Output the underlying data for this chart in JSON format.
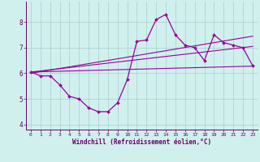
{
  "title": "",
  "xlabel": "Windchill (Refroidissement éolien,°C)",
  "ylabel": "",
  "bg_color": "#d0f0ee",
  "line_color": "#990099",
  "grid_color": "#aacccc",
  "axis_color": "#660066",
  "spine_color": "#660066",
  "xlim": [
    -0.5,
    23.5
  ],
  "ylim": [
    3.8,
    8.8
  ],
  "xticks": [
    0,
    1,
    2,
    3,
    4,
    5,
    6,
    7,
    8,
    9,
    10,
    11,
    12,
    13,
    14,
    15,
    16,
    17,
    18,
    19,
    20,
    21,
    22,
    23
  ],
  "yticks": [
    4,
    5,
    6,
    7,
    8
  ],
  "data_x": [
    0,
    1,
    2,
    3,
    4,
    5,
    6,
    7,
    8,
    9,
    10,
    11,
    12,
    13,
    14,
    15,
    16,
    17,
    18,
    19,
    20,
    21,
    22,
    23
  ],
  "data_y": [
    6.05,
    5.9,
    5.9,
    5.55,
    5.1,
    5.0,
    4.65,
    4.5,
    4.5,
    4.85,
    5.75,
    7.25,
    7.3,
    8.1,
    8.3,
    7.5,
    7.1,
    7.0,
    6.5,
    7.5,
    7.2,
    7.1,
    7.0,
    6.3
  ],
  "trend1_x": [
    0,
    23
  ],
  "trend1_y": [
    6.05,
    6.28
  ],
  "trend2_x": [
    0,
    23
  ],
  "trend2_y": [
    6.05,
    7.05
  ],
  "trend3_x": [
    0,
    23
  ],
  "trend3_y": [
    6.0,
    7.45
  ]
}
